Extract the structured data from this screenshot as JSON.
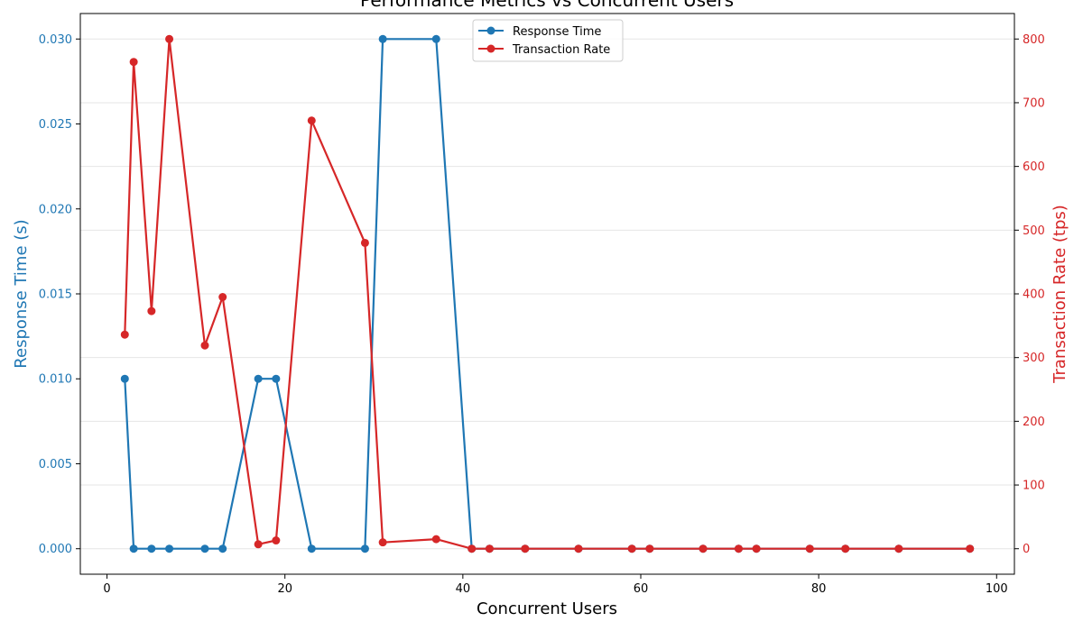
{
  "chart_data": {
    "type": "line",
    "title": "Performance Metrics vs Concurrent Users",
    "xlabel": "Concurrent Users",
    "ylabel_left": "Response Time (s)",
    "ylabel_right": "Transaction Rate (tps)",
    "xlim": [
      -3,
      102
    ],
    "ylim_left": [
      -0.0015,
      0.0315
    ],
    "ylim_right": [
      -40,
      840
    ],
    "x_ticks": [
      0,
      20,
      40,
      60,
      80,
      100
    ],
    "y_ticks_left": [
      0.0,
      0.005,
      0.01,
      0.015,
      0.02,
      0.025,
      0.03
    ],
    "y_ticks_left_labels": [
      "0.000",
      "0.005",
      "0.010",
      "0.015",
      "0.020",
      "0.025",
      "0.030"
    ],
    "y_ticks_right": [
      0,
      100,
      200,
      300,
      400,
      500,
      600,
      700,
      800
    ],
    "grid": "horizontal",
    "legend_position": "top-center",
    "x": [
      2,
      3,
      5,
      7,
      11,
      13,
      17,
      19,
      23,
      29,
      31,
      37,
      41,
      43,
      47,
      53,
      59,
      61,
      67,
      71,
      73,
      79,
      83,
      89,
      97
    ],
    "series": [
      {
        "name": "Response Time",
        "axis": "left",
        "color": "#1f77b4",
        "values": [
          0.01,
          0,
          0,
          0,
          0,
          0,
          0.01,
          0.01,
          0,
          0,
          0.03,
          0.03,
          0,
          0,
          0,
          0,
          0,
          0,
          0,
          0,
          0,
          0,
          0,
          0,
          0
        ]
      },
      {
        "name": "Transaction Rate",
        "axis": "right",
        "color": "#d62728",
        "values": [
          336,
          764,
          373,
          800,
          319,
          395,
          7,
          13,
          672,
          480,
          10,
          15,
          0,
          0,
          0,
          0,
          0,
          0,
          0,
          0,
          0,
          0,
          0,
          0,
          0
        ]
      }
    ]
  }
}
